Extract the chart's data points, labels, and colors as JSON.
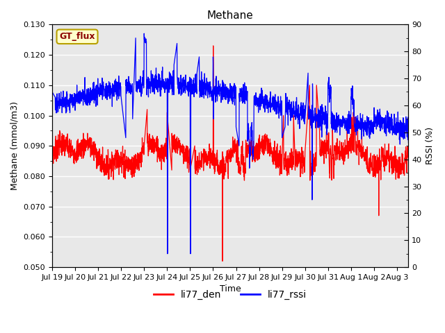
{
  "title": "Methane",
  "ylabel_left": "Methane (mmol/m3)",
  "ylabel_right": "RSSI (%)",
  "xlabel": "Time",
  "ylim_left": [
    0.05,
    0.13
  ],
  "ylim_right": [
    0,
    90
  ],
  "legend_labels": [
    "li77_den",
    "li77_rssi"
  ],
  "legend_colors": [
    "red",
    "blue"
  ],
  "annotation_text": "GT_flux",
  "fig_bg_color": "#ffffff",
  "plot_bg_color": "#e8e8e8",
  "line_color_den": "red",
  "line_color_rssi": "blue",
  "title_fontsize": 11,
  "axis_fontsize": 9,
  "tick_fontsize": 8,
  "linewidth": 0.9
}
